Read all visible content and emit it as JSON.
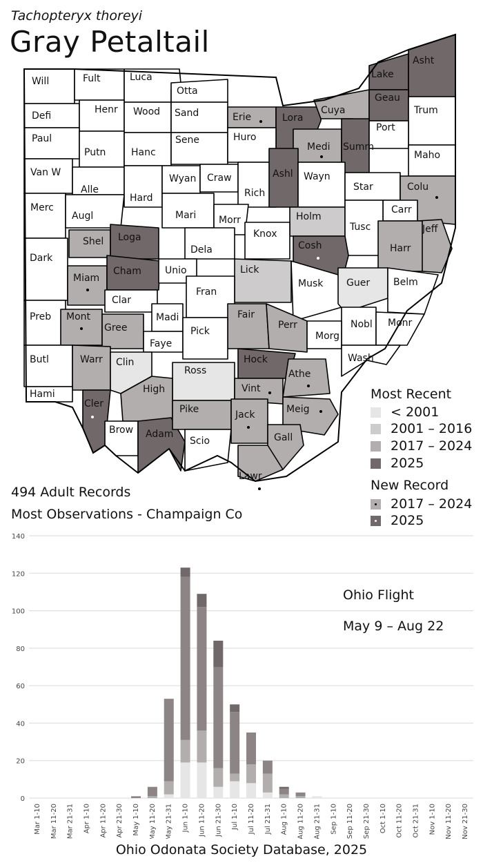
{
  "species": {
    "scientific_name": "Tachopteryx thoreyi",
    "common_name": "Gray Petaltail"
  },
  "stats": {
    "adult_records": "494 Adult Records",
    "most_observations": "Most Observations - Champaign Co"
  },
  "legend": {
    "most_recent_title": "Most Recent",
    "most_recent": [
      {
        "label": "< 2001",
        "color": "#e6e6e6"
      },
      {
        "label": "2001 – 2016",
        "color": "#cdcbcb"
      },
      {
        "label": "2017 – 2024",
        "color": "#b3aeae"
      },
      {
        "label": "2025",
        "color": "#716869"
      }
    ],
    "new_record_title": "New Record",
    "new_record": [
      {
        "label": "2017 – 2024",
        "color": "#b3aeae"
      },
      {
        "label": "2025",
        "color": "#716869"
      }
    ]
  },
  "colors": {
    "pre2001": "#e6e6e6",
    "y2001_2016": "#cdcbcb",
    "y2017_2024": "#b3aeae",
    "y2025": "#716869",
    "county_none": "#ffffff",
    "border": "#000000"
  },
  "map": {
    "counties": [
      {
        "name": "Will",
        "period": "none"
      },
      {
        "name": "Fult",
        "period": "none"
      },
      {
        "name": "Luca",
        "period": "none"
      },
      {
        "name": "Otta",
        "period": "none"
      },
      {
        "name": "Defi",
        "period": "none"
      },
      {
        "name": "Henr",
        "period": "none"
      },
      {
        "name": "Wood",
        "period": "none"
      },
      {
        "name": "Sand",
        "period": "none"
      },
      {
        "name": "Erie",
        "period": "2017-2024",
        "new_record": "2017-2024"
      },
      {
        "name": "Lora",
        "period": "2025"
      },
      {
        "name": "Cuya",
        "period": "2017-2024"
      },
      {
        "name": "Lake",
        "period": "2025"
      },
      {
        "name": "Asht",
        "period": "2025"
      },
      {
        "name": "Geau",
        "period": "2025"
      },
      {
        "name": "Trum",
        "period": "none"
      },
      {
        "name": "Paul",
        "period": "none"
      },
      {
        "name": "Putn",
        "period": "none"
      },
      {
        "name": "Hanc",
        "period": "none"
      },
      {
        "name": "Sene",
        "period": "none"
      },
      {
        "name": "Huro",
        "period": "none"
      },
      {
        "name": "Medi",
        "period": "2017-2024",
        "new_record": "2025"
      },
      {
        "name": "Summ",
        "period": "2025"
      },
      {
        "name": "Port",
        "period": "none"
      },
      {
        "name": "Maho",
        "period": "none"
      },
      {
        "name": "Van W",
        "period": "none"
      },
      {
        "name": "Alle",
        "period": "none"
      },
      {
        "name": "Hard",
        "period": "none"
      },
      {
        "name": "Wyan",
        "period": "none"
      },
      {
        "name": "Craw",
        "period": "none"
      },
      {
        "name": "Rich",
        "period": "none"
      },
      {
        "name": "Ashl",
        "period": "2025"
      },
      {
        "name": "Wayn",
        "period": "none"
      },
      {
        "name": "Star",
        "period": "none"
      },
      {
        "name": "Colu",
        "period": "2017-2024",
        "new_record": "2025"
      },
      {
        "name": "Merc",
        "period": "none"
      },
      {
        "name": "Augl",
        "period": "none"
      },
      {
        "name": "Mari",
        "period": "none"
      },
      {
        "name": "Morr",
        "period": "none"
      },
      {
        "name": "Holm",
        "period": "2001-2016"
      },
      {
        "name": "Carr",
        "period": "none"
      },
      {
        "name": "Tusc",
        "period": "none"
      },
      {
        "name": "Jeff",
        "period": "2017-2024"
      },
      {
        "name": "Shel",
        "period": "2017-2024"
      },
      {
        "name": "Loga",
        "period": "2025"
      },
      {
        "name": "Dela",
        "period": "none"
      },
      {
        "name": "Knox",
        "period": "none"
      },
      {
        "name": "Cosh",
        "period": "2025",
        "new_record": "2025"
      },
      {
        "name": "Harr",
        "period": "2017-2024"
      },
      {
        "name": "Dark",
        "period": "none"
      },
      {
        "name": "Miam",
        "period": "2017-2024",
        "new_record": "2025"
      },
      {
        "name": "Cham",
        "period": "2025"
      },
      {
        "name": "Unio",
        "period": "none"
      },
      {
        "name": "Lick",
        "period": "2001-2016"
      },
      {
        "name": "Musk",
        "period": "none"
      },
      {
        "name": "Guer",
        "period": "pre2001"
      },
      {
        "name": "Belm",
        "period": "none"
      },
      {
        "name": "Clar",
        "period": "none"
      },
      {
        "name": "Fran",
        "period": "none"
      },
      {
        "name": "Preb",
        "period": "none"
      },
      {
        "name": "Mont",
        "period": "2017-2024",
        "new_record": "2025"
      },
      {
        "name": "Gree",
        "period": "2017-2024"
      },
      {
        "name": "Madi",
        "period": "none"
      },
      {
        "name": "Fair",
        "period": "2017-2024"
      },
      {
        "name": "Perr",
        "period": "2017-2024"
      },
      {
        "name": "Nobl",
        "period": "none"
      },
      {
        "name": "Monr",
        "period": "none"
      },
      {
        "name": "Faye",
        "period": "none"
      },
      {
        "name": "Pick",
        "period": "none"
      },
      {
        "name": "Morg",
        "period": "none"
      },
      {
        "name": "Butl",
        "period": "none"
      },
      {
        "name": "Warr",
        "period": "2017-2024"
      },
      {
        "name": "Clin",
        "period": "pre2001"
      },
      {
        "name": "Ross",
        "period": "pre2001"
      },
      {
        "name": "Hock",
        "period": "2025"
      },
      {
        "name": "Wash",
        "period": "none"
      },
      {
        "name": "Athe",
        "period": "2017-2024",
        "new_record": "2025"
      },
      {
        "name": "Hami",
        "period": "none"
      },
      {
        "name": "High",
        "period": "2017-2024"
      },
      {
        "name": "Vint",
        "period": "2017-2024",
        "new_record": "2025"
      },
      {
        "name": "Cler",
        "period": "2025",
        "new_record": "2017-2024"
      },
      {
        "name": "Brow",
        "period": "none"
      },
      {
        "name": "Adam",
        "period": "2025"
      },
      {
        "name": "Pike",
        "period": "2017-2024"
      },
      {
        "name": "Jack",
        "period": "2017-2024",
        "new_record": "2025"
      },
      {
        "name": "Meig",
        "period": "2017-2024",
        "new_record": "2025"
      },
      {
        "name": "Scio",
        "period": "none"
      },
      {
        "name": "Gall",
        "period": "2017-2024"
      },
      {
        "name": "Lawr",
        "period": "2017-2024",
        "new_record": "2025"
      }
    ]
  },
  "flight": {
    "title": "Ohio Flight",
    "range": "May 9 – Aug 22"
  },
  "chart_data": {
    "type": "bar",
    "stacked": true,
    "categories": [
      "Mar 1-10",
      "Mar 11-20",
      "Mar 21-31",
      "Apr 1-10",
      "Apr 11-20",
      "Apr 21-30",
      "May 1-10",
      "May 11-20",
      "May 21-31",
      "Jun 1-10",
      "Jun 11-20",
      "Jun 21-30",
      "Jul 1-10",
      "Jul 11-20",
      "Jul 21-31",
      "Aug 1-10",
      "Aug 11-20",
      "Aug 21-31",
      "Sep 1-10",
      "Sep 11-20",
      "Sep 21-30",
      "Oct 1-10",
      "Oct 11-20",
      "Oct 21-31",
      "Nov 1-10",
      "Nov 11-20",
      "Nov 21-30"
    ],
    "series": [
      {
        "color": "#e6e6e6",
        "values": [
          0,
          0,
          0,
          0,
          0,
          0,
          0,
          0,
          2,
          19,
          19,
          6,
          9,
          8,
          3,
          0,
          0,
          1,
          0,
          0,
          0,
          0,
          0,
          0,
          0,
          0,
          0
        ]
      },
      {
        "color": "#b3aeae",
        "values": [
          0,
          0,
          0,
          0,
          0,
          0,
          0,
          1,
          7,
          12,
          17,
          10,
          4,
          10,
          10,
          2,
          1,
          0,
          0,
          0,
          0,
          0,
          0,
          0,
          0,
          0,
          0
        ]
      },
      {
        "color": "#8d8585",
        "values": [
          0,
          0,
          0,
          0,
          0,
          0,
          1,
          5,
          44,
          87,
          66,
          54,
          33,
          17,
          7,
          3,
          2,
          0,
          0,
          0,
          0,
          0,
          0,
          0,
          0,
          0,
          0
        ]
      },
      {
        "color": "#716869",
        "values": [
          0,
          0,
          0,
          0,
          0,
          0,
          0,
          0,
          0,
          5,
          7,
          14,
          4,
          0,
          0,
          1,
          0,
          0,
          0,
          0,
          0,
          0,
          0,
          0,
          0,
          0,
          0
        ]
      }
    ],
    "totals": [
      0,
      0,
      0,
      0,
      0,
      0,
      1,
      6,
      53,
      123,
      109,
      84,
      50,
      35,
      20,
      6,
      3,
      1,
      0,
      0,
      0,
      0,
      0,
      0,
      0,
      0,
      0
    ],
    "ylim": [
      0,
      140
    ],
    "yticks": [
      "0",
      "20",
      "40",
      "60",
      "80",
      "100",
      "120",
      "140"
    ],
    "grid": true
  },
  "source": "Ohio Odonata Society Database, 2025"
}
